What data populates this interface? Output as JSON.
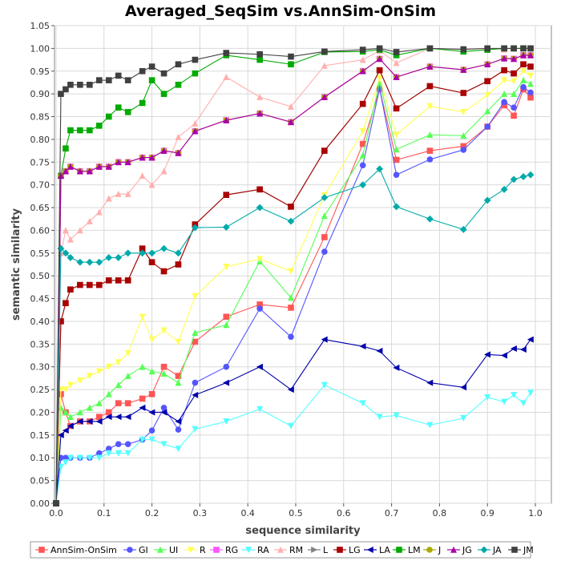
{
  "chart_data": {
    "type": "line",
    "title": "Averaged_SeqSim vs.AnnSim-OnSim",
    "xlabel": "sequence similarity",
    "ylabel": "semantic similarity",
    "xlim": [
      0.0,
      1.0
    ],
    "ylim": [
      0.0,
      1.05
    ],
    "x_ticks": [
      "0.0",
      "0.1",
      "0.2",
      "0.3",
      "0.4",
      "0.5",
      "0.6",
      "0.7",
      "0.8",
      "0.9",
      "1.0"
    ],
    "y_ticks": [
      "0.00",
      "0.05",
      "0.10",
      "0.15",
      "0.20",
      "0.25",
      "0.30",
      "0.35",
      "0.40",
      "0.45",
      "0.50",
      "0.55",
      "0.60",
      "0.65",
      "0.70",
      "0.75",
      "0.80",
      "0.85",
      "0.90",
      "0.95",
      "1.00",
      "1.05"
    ],
    "grid": true,
    "legend_position": "bottom",
    "x": [
      0.0,
      0.01,
      0.02,
      0.03,
      0.05,
      0.07,
      0.09,
      0.11,
      0.13,
      0.15,
      0.18,
      0.2,
      0.225,
      0.255,
      0.29,
      0.355,
      0.425,
      0.49,
      0.56,
      0.64,
      0.675,
      0.71,
      0.78,
      0.85,
      0.9,
      0.935,
      0.955,
      0.975,
      0.99
    ],
    "series": [
      {
        "name": "AnnSim-OnSim",
        "color": "#ff5555",
        "marker": "square",
        "values": [
          0.0,
          0.24,
          0.2,
          0.17,
          0.18,
          0.18,
          0.19,
          0.2,
          0.22,
          0.22,
          0.23,
          0.24,
          0.3,
          0.28,
          0.355,
          0.41,
          0.437,
          0.43,
          0.585,
          0.79,
          0.91,
          0.755,
          0.775,
          0.785,
          0.828,
          0.875,
          0.852,
          0.91,
          0.892
        ]
      },
      {
        "name": "GI",
        "color": "#5555ff",
        "marker": "circle",
        "values": [
          0.0,
          0.1,
          0.1,
          0.1,
          0.1,
          0.1,
          0.11,
          0.12,
          0.13,
          0.13,
          0.14,
          0.16,
          0.21,
          0.162,
          0.265,
          0.3,
          0.428,
          0.366,
          0.553,
          0.743,
          0.912,
          0.722,
          0.756,
          0.777,
          0.828,
          0.882,
          0.87,
          0.915,
          0.903
        ]
      },
      {
        "name": "UI",
        "color": "#55ff55",
        "marker": "triangle-up",
        "values": [
          0.0,
          0.21,
          0.2,
          0.19,
          0.2,
          0.21,
          0.22,
          0.24,
          0.26,
          0.28,
          0.3,
          0.29,
          0.285,
          0.265,
          0.375,
          0.392,
          0.532,
          0.452,
          0.632,
          0.765,
          0.925,
          0.778,
          0.81,
          0.808,
          0.862,
          0.9,
          0.9,
          0.93,
          0.922
        ]
      },
      {
        "name": "R",
        "color": "#ffff55",
        "marker": "triangle-down",
        "values": [
          0.0,
          0.25,
          0.25,
          0.26,
          0.27,
          0.28,
          0.29,
          0.3,
          0.31,
          0.33,
          0.41,
          0.36,
          0.38,
          0.355,
          0.455,
          0.52,
          0.537,
          0.51,
          0.677,
          0.818,
          0.935,
          0.81,
          0.873,
          0.86,
          0.897,
          0.93,
          0.928,
          0.95,
          0.94
        ]
      },
      {
        "name": "RG",
        "color": "#ff55ff",
        "marker": "square",
        "values": [
          0.0,
          0.72,
          0.73,
          0.74,
          0.73,
          0.73,
          0.74,
          0.74,
          0.75,
          0.75,
          0.76,
          0.76,
          0.775,
          0.77,
          0.818,
          0.842,
          0.857,
          0.838,
          0.893,
          0.95,
          0.977,
          0.937,
          0.96,
          0.953,
          0.965,
          0.978,
          0.977,
          0.985,
          0.985
        ]
      },
      {
        "name": "RA",
        "color": "#55ffff",
        "marker": "triangle-down",
        "values": [
          0.0,
          0.08,
          0.09,
          0.1,
          0.1,
          0.1,
          0.1,
          0.11,
          0.11,
          0.11,
          0.14,
          0.14,
          0.13,
          0.12,
          0.163,
          0.18,
          0.207,
          0.17,
          0.26,
          0.22,
          0.19,
          0.193,
          0.172,
          0.187,
          0.233,
          0.223,
          0.238,
          0.22,
          0.243
        ]
      },
      {
        "name": "RM",
        "color": "#ffafaf",
        "marker": "triangle-up",
        "values": [
          0.0,
          0.55,
          0.6,
          0.58,
          0.6,
          0.62,
          0.64,
          0.67,
          0.68,
          0.68,
          0.72,
          0.7,
          0.73,
          0.805,
          0.835,
          0.937,
          0.893,
          0.872,
          0.962,
          0.975,
          0.995,
          0.968,
          1.0,
          0.998,
          1.0,
          0.998,
          1.0,
          1.0,
          1.0
        ]
      },
      {
        "name": "L",
        "color": "#808080",
        "marker": "triangle-right",
        "values": [
          0.0,
          0.4,
          0.44,
          0.47,
          0.48,
          0.48,
          0.48,
          0.49,
          0.49,
          0.49,
          0.56,
          0.53,
          0.51,
          0.525,
          0.613,
          0.678,
          0.69,
          0.652,
          0.775,
          0.878,
          0.952,
          0.868,
          0.917,
          0.902,
          0.928,
          0.952,
          0.945,
          0.965,
          0.96
        ]
      },
      {
        "name": "LG",
        "color": "#aa0000",
        "marker": "square",
        "values": [
          0.0,
          0.4,
          0.44,
          0.47,
          0.48,
          0.48,
          0.48,
          0.49,
          0.49,
          0.49,
          0.56,
          0.53,
          0.51,
          0.525,
          0.613,
          0.678,
          0.69,
          0.652,
          0.775,
          0.878,
          0.952,
          0.868,
          0.917,
          0.902,
          0.928,
          0.952,
          0.945,
          0.965,
          0.96
        ]
      },
      {
        "name": "LA",
        "color": "#0000aa",
        "marker": "triangle-left",
        "values": [
          0.0,
          0.15,
          0.16,
          0.17,
          0.18,
          0.18,
          0.18,
          0.19,
          0.19,
          0.19,
          0.21,
          0.2,
          0.2,
          0.18,
          0.238,
          0.265,
          0.3,
          0.25,
          0.36,
          0.345,
          0.335,
          0.298,
          0.265,
          0.255,
          0.327,
          0.325,
          0.34,
          0.338,
          0.36
        ]
      },
      {
        "name": "LM",
        "color": "#00aa00",
        "marker": "square",
        "values": [
          0.0,
          0.72,
          0.78,
          0.82,
          0.82,
          0.82,
          0.83,
          0.85,
          0.87,
          0.86,
          0.88,
          0.93,
          0.9,
          0.92,
          0.945,
          0.985,
          0.975,
          0.965,
          0.992,
          0.993,
          0.997,
          0.985,
          1.0,
          0.993,
          0.997,
          1.0,
          1.0,
          1.0,
          1.0
        ]
      },
      {
        "name": "J",
        "color": "#aaaa00",
        "marker": "circle",
        "values": [
          0.0,
          0.72,
          0.73,
          0.74,
          0.73,
          0.73,
          0.74,
          0.74,
          0.75,
          0.75,
          0.76,
          0.76,
          0.775,
          0.77,
          0.818,
          0.842,
          0.857,
          0.838,
          0.893,
          0.95,
          0.977,
          0.937,
          0.96,
          0.953,
          0.965,
          0.978,
          0.977,
          0.985,
          0.985
        ]
      },
      {
        "name": "JG",
        "color": "#aa00aa",
        "marker": "triangle-up",
        "values": [
          0.0,
          0.72,
          0.73,
          0.74,
          0.73,
          0.73,
          0.74,
          0.74,
          0.75,
          0.75,
          0.76,
          0.76,
          0.775,
          0.77,
          0.818,
          0.842,
          0.857,
          0.838,
          0.893,
          0.95,
          0.977,
          0.937,
          0.96,
          0.953,
          0.965,
          0.978,
          0.977,
          0.985,
          0.985
        ]
      },
      {
        "name": "JA",
        "color": "#00aaaa",
        "marker": "diamond",
        "values": [
          0.0,
          0.56,
          0.55,
          0.54,
          0.53,
          0.53,
          0.53,
          0.54,
          0.54,
          0.55,
          0.55,
          0.55,
          0.56,
          0.55,
          0.606,
          0.607,
          0.65,
          0.62,
          0.672,
          0.7,
          0.735,
          0.652,
          0.625,
          0.602,
          0.666,
          0.69,
          0.712,
          0.718,
          0.722
        ]
      },
      {
        "name": "JM",
        "color": "#404040",
        "marker": "square",
        "values": [
          0.0,
          0.9,
          0.91,
          0.92,
          0.92,
          0.92,
          0.93,
          0.93,
          0.94,
          0.93,
          0.95,
          0.96,
          0.945,
          0.965,
          0.975,
          0.99,
          0.987,
          0.982,
          0.993,
          0.997,
          1.0,
          0.992,
          1.0,
          0.998,
          1.0,
          1.0,
          1.0,
          1.0,
          1.0
        ]
      }
    ]
  }
}
